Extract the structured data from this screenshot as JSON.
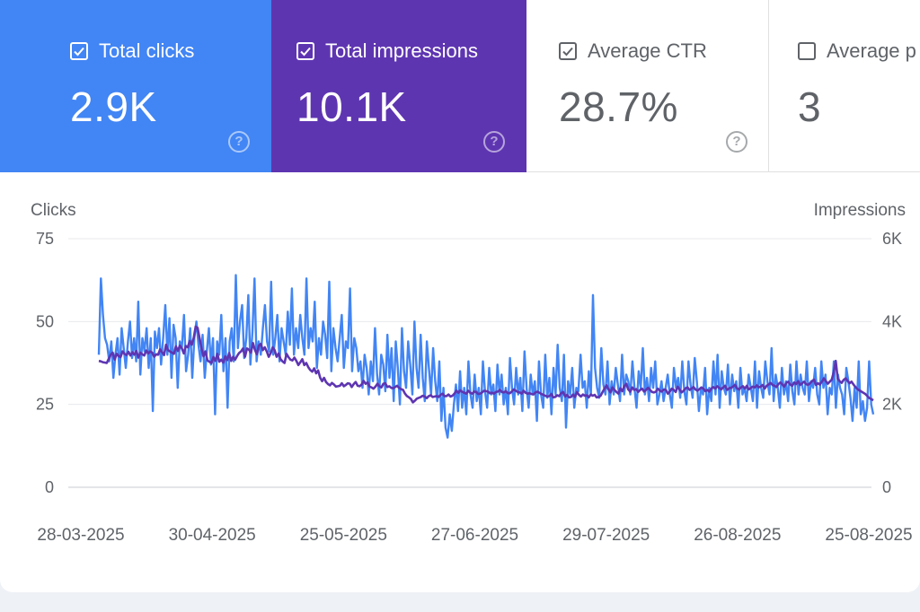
{
  "metrics": [
    {
      "label": "Total clicks",
      "value": "2.9K",
      "checked": true
    },
    {
      "label": "Total impressions",
      "value": "10.1K",
      "checked": true
    },
    {
      "label": "Average CTR",
      "value": "28.7%",
      "checked": true
    },
    {
      "label": "Average p",
      "value": "3",
      "checked": false
    }
  ],
  "help_glyph": "?",
  "colors": {
    "clicks": "#4285f4",
    "impressions": "#5e35b1",
    "ctr_text": "#5f6368"
  },
  "chart_data": {
    "type": "line",
    "title": "",
    "ylabel_left": "Clicks",
    "ylabel_right": "Impressions",
    "y_left_ticks": [
      "75",
      "50",
      "25",
      "0"
    ],
    "y_left_range": [
      0,
      75
    ],
    "y_right_ticks": [
      "6K",
      "4K",
      "2K",
      "0"
    ],
    "y_right_range": [
      0,
      6000
    ],
    "x_tick_labels": [
      "28-03-2025",
      "30-04-2025",
      "25-05-2025",
      "27-06-2025",
      "29-07-2025",
      "26-08-2025",
      "25-08-2025"
    ],
    "series": [
      {
        "name": "Clicks",
        "axis": "left",
        "color": "#4285f4",
        "values": [
          40,
          63,
          52,
          45,
          43,
          38,
          44,
          33,
          40,
          45,
          34,
          48,
          42,
          36,
          44,
          50,
          39,
          45,
          38,
          56,
          34,
          45,
          41,
          48,
          36,
          45,
          23,
          47,
          42,
          48,
          37,
          45,
          55,
          40,
          51,
          33,
          49,
          45,
          30,
          44,
          42,
          52,
          35,
          40,
          48,
          33,
          45,
          50,
          43,
          38,
          46,
          33,
          41,
          48,
          37,
          45,
          22,
          44,
          40,
          52,
          35,
          45,
          24,
          44,
          48,
          38,
          64,
          42,
          50,
          55,
          39,
          45,
          58,
          37,
          47,
          63,
          38,
          44,
          40,
          48,
          55,
          44,
          41,
          62,
          40,
          45,
          52,
          38,
          48,
          44,
          40,
          53,
          43,
          60,
          40,
          48,
          42,
          52,
          45,
          40,
          63,
          42,
          48,
          44,
          56,
          36,
          45,
          40,
          50,
          46,
          39,
          62,
          35,
          48,
          42,
          38,
          45,
          52,
          36,
          44,
          42,
          60,
          35,
          45,
          42,
          35,
          38,
          30,
          40,
          36,
          28,
          38,
          32,
          48,
          34,
          28,
          40,
          37,
          29,
          46,
          33,
          42,
          26,
          44,
          36,
          25,
          48,
          35,
          30,
          44,
          37,
          28,
          50,
          36,
          30,
          46,
          33,
          26,
          44,
          36,
          28,
          42,
          32,
          26,
          38,
          20,
          30,
          18,
          15,
          22,
          17,
          25,
          31,
          23,
          35,
          24,
          30,
          22,
          38,
          28,
          24,
          34,
          26,
          30,
          22,
          38,
          29,
          24,
          36,
          28,
          31,
          23,
          37,
          28,
          34,
          25,
          30,
          22,
          39,
          30,
          25,
          36,
          28,
          33,
          23,
          41,
          30,
          24,
          34,
          28,
          32,
          20,
          38,
          28,
          24,
          40,
          27,
          33,
          22,
          36,
          28,
          43,
          30,
          26,
          40,
          18,
          32,
          28,
          36,
          24,
          30,
          29,
          40,
          30,
          32,
          24,
          35,
          28,
          58,
          36,
          30,
          27,
          42,
          31,
          28,
          38,
          25,
          32,
          28,
          36,
          31,
          26,
          40,
          28,
          34,
          32,
          28,
          38,
          30,
          24,
          35,
          30,
          42,
          28,
          33,
          26,
          36,
          30,
          38,
          25,
          28,
          32,
          26,
          30,
          34,
          28,
          24,
          36,
          30,
          33,
          27,
          38,
          29,
          25,
          38,
          31,
          27,
          39,
          32,
          23,
          30,
          28,
          36,
          22,
          30,
          26,
          38,
          28,
          40,
          24,
          35,
          30,
          28,
          37,
          25,
          34,
          29,
          32,
          24,
          36,
          28,
          30,
          26,
          34,
          30,
          26,
          38,
          24,
          35,
          30,
          27,
          38,
          32,
          28,
          42,
          26,
          34,
          30,
          24,
          36,
          28,
          32,
          26,
          37,
          29,
          25,
          38,
          28,
          34,
          30,
          28,
          38,
          26,
          32,
          30,
          36,
          28,
          25,
          38,
          30,
          34,
          22,
          30,
          28,
          38,
          24,
          34,
          30,
          28,
          22,
          36,
          32,
          27,
          20,
          30,
          24,
          38,
          22,
          26,
          20,
          24,
          38,
          25,
          22
        ]
      },
      {
        "name": "Impressions",
        "axis": "right",
        "color": "#5e35b1",
        "values": [
          3050,
          3040,
          3020,
          3010,
          3000,
          3100,
          3200,
          3250,
          3080,
          3220,
          3170,
          3140,
          3280,
          3220,
          3190,
          3270,
          3180,
          3260,
          3200,
          3290,
          3130,
          3250,
          3210,
          3180,
          3300,
          3230,
          3280,
          3250,
          3150,
          3210,
          3200,
          3330,
          3260,
          3190,
          3440,
          3310,
          3280,
          3250,
          3220,
          3400,
          3290,
          3420,
          3350,
          3230,
          3410,
          3380,
          3530,
          3440,
          3600,
          3880,
          3850,
          3600,
          3350,
          3160,
          3280,
          3060,
          3030,
          3000,
          3140,
          3050,
          3220,
          3030,
          3080,
          3010,
          3160,
          3070,
          3240,
          3050,
          3150,
          3080,
          3170,
          3240,
          3280,
          3350,
          3150,
          3350,
          3320,
          3250,
          3480,
          3320,
          3210,
          3420,
          3460,
          3310,
          3380,
          3280,
          3150,
          3240,
          3380,
          3310,
          3150,
          3230,
          3090,
          3040,
          3000,
          3220,
          3140,
          3080,
          3060,
          3130,
          3050,
          2950,
          3020,
          3090,
          2950,
          3000,
          2900,
          2830,
          2790,
          2870,
          2750,
          2820,
          2650,
          2560,
          2640,
          2540,
          2490,
          2460,
          2520,
          2480,
          2430,
          2440,
          2450,
          2510,
          2440,
          2470,
          2510,
          2500,
          2420,
          2490,
          2540,
          2450,
          2440,
          2480,
          2570,
          2500,
          2530,
          2430,
          2410,
          2380,
          2430,
          2500,
          2440,
          2410,
          2500,
          2510,
          2420,
          2440,
          2400,
          2390,
          2420,
          2450,
          2400,
          2370,
          2350,
          2260,
          2200,
          2170,
          2130,
          2050,
          2090,
          2140,
          2160,
          2180,
          2210,
          2190,
          2150,
          2200,
          2220,
          2180,
          2190,
          2200,
          2180,
          2230,
          2260,
          2200,
          2200,
          2240,
          2190,
          2210,
          2260,
          2330,
          2280,
          2340,
          2300,
          2280,
          2260,
          2330,
          2280,
          2260,
          2310,
          2300,
          2250,
          2260,
          2290,
          2330,
          2320,
          2310,
          2270,
          2280,
          2260,
          2300,
          2310,
          2350,
          2300,
          2290,
          2320,
          2270,
          2270,
          2310,
          2360,
          2330,
          2300,
          2290,
          2260,
          2330,
          2280,
          2260,
          2270,
          2250,
          2240,
          2290,
          2310,
          2280,
          2250,
          2230,
          2210,
          2190,
          2200,
          2250,
          2170,
          2180,
          2220,
          2200,
          2270,
          2300,
          2190,
          2230,
          2170,
          2180,
          2240,
          2180,
          2300,
          2230,
          2190,
          2240,
          2210,
          2220,
          2170,
          2240,
          2210,
          2230,
          2170,
          2180,
          2210,
          2300,
          2380,
          2460,
          2360,
          2290,
          2410,
          2350,
          2300,
          2260,
          2390,
          2320,
          2440,
          2500,
          2360,
          2310,
          2410,
          2350,
          2370,
          2300,
          2350,
          2380,
          2310,
          2350,
          2400,
          2350,
          2300,
          2290,
          2310,
          2380,
          2330,
          2310,
          2360,
          2350,
          2260,
          2310,
          2380,
          2350,
          2300,
          2430,
          2360,
          2290,
          2330,
          2390,
          2410,
          2350,
          2380,
          2420,
          2360,
          2330,
          2370,
          2410,
          2380,
          2320,
          2350,
          2310,
          2380,
          2420,
          2380,
          2440,
          2400,
          2360,
          2410,
          2450,
          2350,
          2390,
          2400,
          2430,
          2470,
          2390,
          2360,
          2410,
          2440,
          2380,
          2450,
          2360,
          2400,
          2430,
          2410,
          2460,
          2410,
          2430,
          2470,
          2380,
          2450,
          2480,
          2520,
          2470,
          2450,
          2420,
          2490,
          2530,
          2480,
          2430,
          2520,
          2550,
          2480,
          2450,
          2530,
          2490,
          2560,
          2470,
          2510,
          2550,
          2490,
          2470,
          2510,
          2560,
          2600,
          2470,
          2510,
          2480,
          2550,
          2630,
          2560,
          2500,
          2550,
          2600,
          2780,
          3050,
          2620,
          2560,
          2520,
          2590,
          2630,
          2570,
          2510,
          2550,
          2480,
          2420,
          2370,
          2340,
          2310,
          2280,
          2250,
          2200,
          2150,
          2130,
          2100
        ]
      }
    ]
  }
}
